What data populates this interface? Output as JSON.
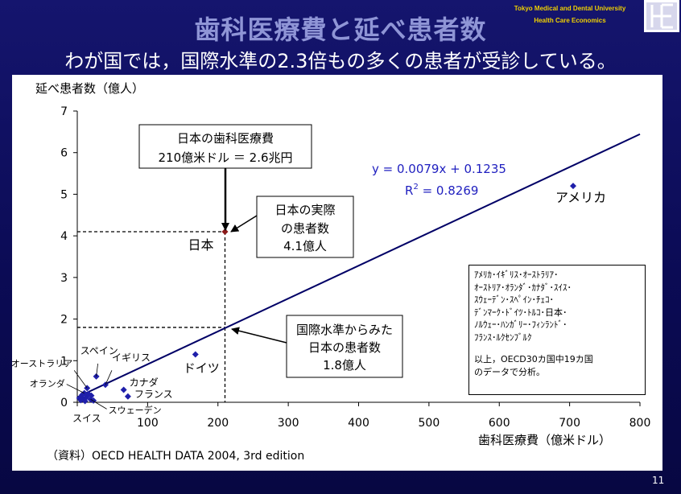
{
  "header": {
    "university_line1": "Tokyo Medical and  Dental University",
    "university_line2": "Health Care Economics",
    "title": "歯科医療費と延べ患者数",
    "subtitle": "わが国では，国際水準の2.3倍もの多くの患者が受診している。",
    "page_number": "11"
  },
  "colors": {
    "background": "#0b0b55",
    "title": "#8f95d6",
    "trend_line": "#000066",
    "points": "#1f1faa",
    "japan_point": "#8b1a1a",
    "equation": "#1f1fbf"
  },
  "chart_data": {
    "type": "scatter",
    "xlabel": "歯科医療費（億米ドル）",
    "ylabel": "延べ患者数（億人）",
    "xlim": [
      0,
      800
    ],
    "ylim": [
      0,
      7
    ],
    "xticks": [
      0,
      100,
      200,
      300,
      400,
      500,
      600,
      700,
      800
    ],
    "yticks": [
      0,
      1,
      2,
      3,
      4,
      5,
      6,
      7
    ],
    "grid": false,
    "source": "（資料）OECD HEALTH DATA 2004, 3rd edition",
    "regression": {
      "equation": "y = 0.0079x + 0.1235",
      "r2_label": "R",
      "r2_sup": "2",
      "r2_value": " = 0.8269",
      "slope": 0.0079,
      "intercept": 0.1235,
      "x_range": [
        0,
        800
      ]
    },
    "points": [
      {
        "label": "アメリカ",
        "x": 705,
        "y": 5.2
      },
      {
        "label": "日本",
        "x": 210,
        "y": 4.1,
        "highlight": true
      },
      {
        "label": "ドイツ",
        "x": 168,
        "y": 1.15
      },
      {
        "label": "スペイン",
        "x": 27,
        "y": 0.62
      },
      {
        "label": "イギリス",
        "x": 40,
        "y": 0.42
      },
      {
        "label": "オーストラリア",
        "x": 14,
        "y": 0.34
      },
      {
        "label": "オランダ",
        "x": 10,
        "y": 0.22
      },
      {
        "label": "カナダ",
        "x": 66,
        "y": 0.3
      },
      {
        "label": "フランス",
        "x": 72,
        "y": 0.14
      },
      {
        "label": "スウェーデン",
        "x": 19,
        "y": 0.07
      },
      {
        "label": "スイス",
        "x": 8,
        "y": 0.08
      },
      {
        "label": "",
        "x": 3,
        "y": 0.1
      },
      {
        "label": "",
        "x": 5,
        "y": 0.05
      },
      {
        "label": "",
        "x": 7,
        "y": 0.18
      },
      {
        "label": "",
        "x": 11,
        "y": 0.03
      },
      {
        "label": "",
        "x": 13,
        "y": 0.12
      },
      {
        "label": "",
        "x": 16,
        "y": 0.2
      },
      {
        "label": "",
        "x": 20,
        "y": 0.16
      },
      {
        "label": "",
        "x": 23,
        "y": 0.04
      }
    ],
    "guides": [
      {
        "x": 210,
        "y": 4.1
      },
      {
        "x": 210,
        "y": 1.8
      }
    ],
    "callouts": [
      {
        "lines": [
          "日本の歯科医療費",
          "210億米ドル ＝ 2.6兆円"
        ]
      },
      {
        "lines": [
          "日本の実際",
          "の患者数",
          "4.1億人"
        ]
      },
      {
        "lines": [
          "国際水準からみた",
          "日本の患者数",
          "1.8億人"
        ]
      }
    ],
    "note_lines": [
      "ｱﾒﾘｶ･ｲｷﾞﾘｽ･ｵｰｽﾄﾗﾘｱ･",
      "ｵｰｽﾄﾘｱ･ｵﾗﾝﾀﾞ･ｶﾅﾀﾞ･ｽｲｽ･",
      "ｽｳｪｰﾃﾞﾝ･ｽﾍﾟｲﾝ･ﾁｪｺ･",
      "ﾃﾞﾝﾏｰｸ･ﾄﾞｲﾂ･ﾄﾙｺ･日本･",
      "ﾉﾙｳｪｰ･ﾊﾝｶﾞﾘｰ･ﾌｨﾝﾗﾝﾄﾞ･",
      "ﾌﾗﾝｽ･ﾙｸｾﾝﾌﾞﾙｸ"
    ],
    "note_summary": [
      "以上，OECD30カ国中19カ国",
      "のデータで分析。"
    ]
  }
}
